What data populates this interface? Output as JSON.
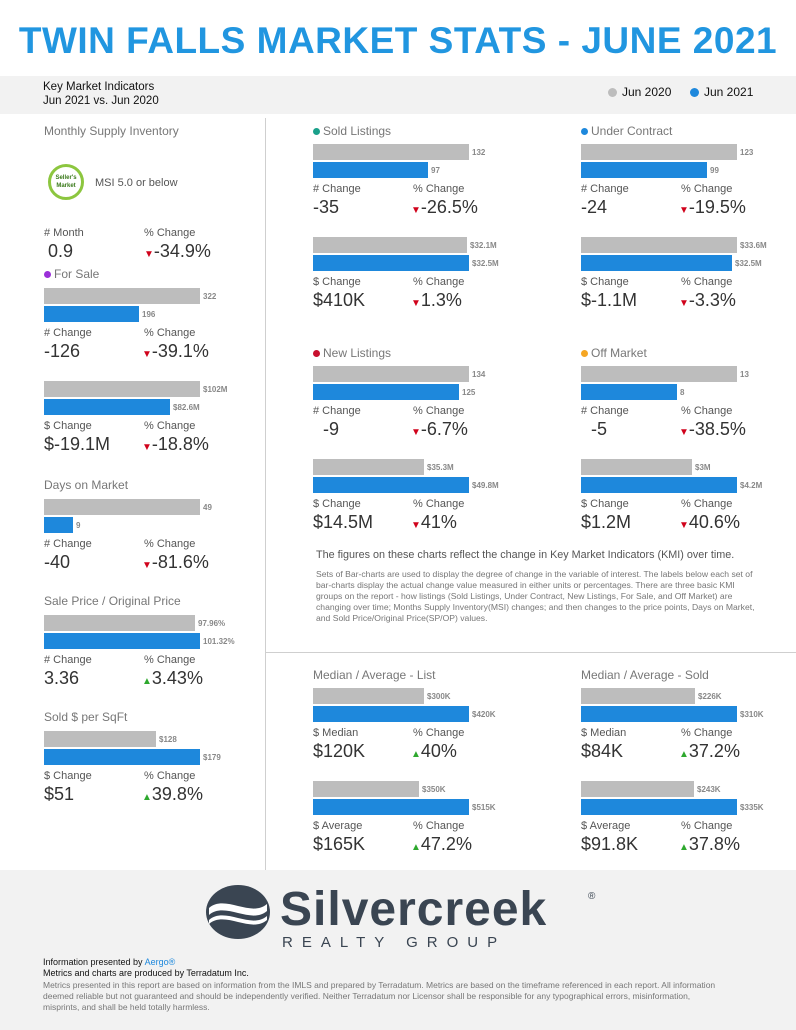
{
  "title": "TWIN FALLS MARKET STATS - JUNE 2021",
  "kmi": {
    "line1": "Key Market Indicators",
    "line2": "Jun 2021 vs. Jun 2020"
  },
  "legend": {
    "prev": "Jun 2020",
    "curr": "Jun 2021",
    "prev_color": "#bdbdbd",
    "curr_color": "#1e88dc"
  },
  "msi": {
    "title": "Monthly Supply Inventory",
    "badge": "Seller's Market",
    "note": "MSI 5.0 or below",
    "l1": "# Month",
    "v1": "0.9",
    "l2": "% Change",
    "v2": "-34.9%",
    "dir": "down"
  },
  "sections": [
    {
      "id": "for-sale",
      "title": "For Sale",
      "dot": "#9b30d9",
      "groups": [
        {
          "gray": "322",
          "blue": "196",
          "g": 322,
          "b": 196,
          "l1": "# Change",
          "v1": "-126",
          "l2": "% Change",
          "v2": "-39.1%",
          "dir": "down"
        },
        {
          "gray": "$102M",
          "blue": "$82.6M",
          "g": 102,
          "b": 82.6,
          "l1": "$ Change",
          "v1": "$-19.1M",
          "l2": "% Change",
          "v2": "-18.8%",
          "dir": "down"
        }
      ]
    },
    {
      "id": "days-on-market",
      "title": "Days on Market",
      "dot": "",
      "groups": [
        {
          "gray": "49",
          "blue": "9",
          "g": 49,
          "b": 9,
          "l1": "# Change",
          "v1": "-40",
          "l2": "% Change",
          "v2": "-81.6%",
          "dir": "down"
        }
      ]
    },
    {
      "id": "sale-price",
      "title": "Sale Price / Original Price",
      "dot": "",
      "groups": [
        {
          "gray": "97.96%",
          "blue": "101.32%",
          "g": 97.96,
          "b": 101.32,
          "l1": "# Change",
          "v1": "3.36",
          "l2": "% Change",
          "v2": "3.43%",
          "dir": "up"
        }
      ]
    },
    {
      "id": "sold-per-sqft",
      "title": "Sold $ per SqFt",
      "dot": "",
      "groups": [
        {
          "gray": "$128",
          "blue": "$179",
          "g": 128,
          "b": 179,
          "l1": "$ Change",
          "v1": "$51",
          "l2": "% Change",
          "v2": "39.8%",
          "dir": "up"
        }
      ]
    },
    {
      "id": "sold-listings",
      "title": "Sold Listings",
      "dot": "#1aa08a",
      "groups": [
        {
          "gray": "132",
          "blue": "97",
          "g": 132,
          "b": 97,
          "l1": "# Change",
          "v1": "-35",
          "l2": "% Change",
          "v2": "-26.5%",
          "dir": "down"
        },
        {
          "gray": "$32.1M",
          "blue": "$32.5M",
          "g": 32.1,
          "b": 32.5,
          "l1": "$ Change",
          "v1": "$410K",
          "l2": "% Change",
          "v2": "1.3%",
          "dir": "down"
        }
      ]
    },
    {
      "id": "under-contract",
      "title": "Under Contract",
      "dot": "#1e88dc",
      "groups": [
        {
          "gray": "123",
          "blue": "99",
          "g": 123,
          "b": 99,
          "l1": "# Change",
          "v1": "-24",
          "l2": "% Change",
          "v2": "-19.5%",
          "dir": "down"
        },
        {
          "gray": "$33.6M",
          "blue": "$32.5M",
          "g": 33.6,
          "b": 32.5,
          "l1": "$ Change",
          "v1": "$-1.1M",
          "l2": "% Change",
          "v2": "-3.3%",
          "dir": "down"
        }
      ]
    },
    {
      "id": "new-listings",
      "title": "New Listings",
      "dot": "#c8102e",
      "groups": [
        {
          "gray": "134",
          "blue": "125",
          "g": 134,
          "b": 125,
          "l1": "# Change",
          "v1": "-9",
          "l2": "% Change",
          "v2": "-6.7%",
          "dir": "down"
        },
        {
          "gray": "$35.3M",
          "blue": "$49.8M",
          "g": 35.3,
          "b": 49.8,
          "l1": "$ Change",
          "v1": "$14.5M",
          "l2": "% Change",
          "v2": "41%",
          "dir": "down"
        }
      ]
    },
    {
      "id": "off-market",
      "title": "Off Market",
      "dot": "#f5a623",
      "groups": [
        {
          "gray": "13",
          "blue": "8",
          "g": 13,
          "b": 8,
          "l1": "# Change",
          "v1": "-5",
          "l2": "% Change",
          "v2": "-38.5%",
          "dir": "down"
        },
        {
          "gray": "$3M",
          "blue": "$4.2M",
          "g": 3,
          "b": 4.2,
          "l1": "$ Change",
          "v1": "$1.2M",
          "l2": "% Change",
          "v2": "40.6%",
          "dir": "down"
        }
      ]
    },
    {
      "id": "median-list",
      "title": "Median / Average - List",
      "dot": "",
      "groups": [
        {
          "gray": "$300K",
          "blue": "$420K",
          "g": 300,
          "b": 420,
          "l1": "$ Median",
          "v1": "$120K",
          "l2": "% Change",
          "v2": "40%",
          "dir": "up"
        },
        {
          "gray": "$350K",
          "blue": "$515K",
          "g": 350,
          "b": 515,
          "l1": "$ Average",
          "v1": "$165K",
          "l2": "% Change",
          "v2": "47.2%",
          "dir": "up"
        }
      ]
    },
    {
      "id": "median-sold",
      "title": "Median / Average - Sold",
      "dot": "",
      "groups": [
        {
          "gray": "$226K",
          "blue": "$310K",
          "g": 226,
          "b": 310,
          "l1": "$ Median",
          "v1": "$84K",
          "l2": "% Change",
          "v2": "37.2%",
          "dir": "up"
        },
        {
          "gray": "$243K",
          "blue": "$335K",
          "g": 243,
          "b": 335,
          "l1": "$ Average",
          "v1": "$91.8K",
          "l2": "% Change",
          "v2": "37.8%",
          "dir": "up"
        }
      ]
    }
  ],
  "description": {
    "heading": "The figures on these charts reflect the change in Key Market Indicators (KMI) over time.",
    "body": "Sets of Bar-charts are used to display the degree of change in the variable of interest. The labels below each set of bar-charts display the actual change value measured in either units or percentages. There are three basic KMI groups on the report - how listings (Sold Listings, Under Contract, New Listings, For Sale, and Off Market) are changing over time; Months Supply Inventory(MSI) changes; and then changes to the price points, Days on Market, and Sold Price/Original Price(SP/OP) values."
  },
  "footer": {
    "logo": "Silvercreek",
    "logo_sub": "REALTY GROUP",
    "reg": "®",
    "presented": "Information presented by ",
    "presenter": "Aergo®",
    "produced": "Metrics and charts are produced by Terradatum Inc.",
    "disclaimer": "Metrics presented in this report are based on information from the IMLS and prepared by Terradatum. Metrics are based on the timeframe referenced in each report. All information deemed reliable but not guaranteed and should be independently verified. Neither Terradatum nor Licensor shall be responsible for any typographical errors, misinformation, misprints, and shall be held totally harmless."
  }
}
